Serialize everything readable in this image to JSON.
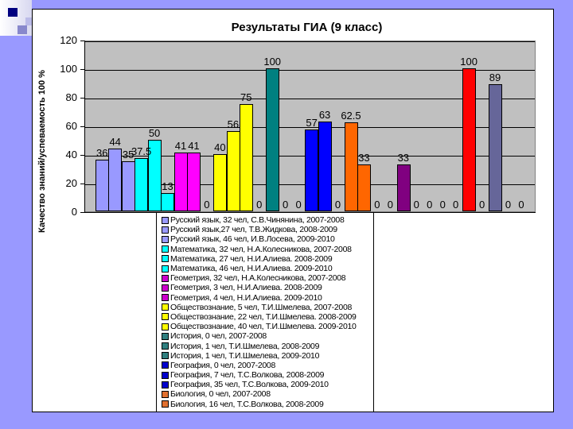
{
  "chart_data": {
    "type": "bar",
    "title": "Результаты ГИА (9 класс)",
    "xlabel": "",
    "ylabel": "Качество знаний/успеваемость 100 %",
    "ylim": [
      0,
      120
    ],
    "yticks": [
      0,
      20,
      40,
      60,
      80,
      100,
      120
    ],
    "grid": true,
    "legend_position": "bottom-center",
    "series": [
      {
        "name": "Русский язык, 32 чел, С.В.Чинянина, 2007-2008",
        "value": 36,
        "color": "#9999ff"
      },
      {
        "name": "Русский язык,27 чел, Т.В.Жидкова, 2008-2009",
        "value": 44,
        "color": "#9999ff"
      },
      {
        "name": "Русский язык, 46 чел, И.В.Лосева, 2009-2010",
        "value": 35,
        "color": "#9999ff"
      },
      {
        "name": "Математика, 32 чел, Н.А.Колесникова, 2007-2008",
        "value": 37.5,
        "color": "#00ffff"
      },
      {
        "name": "Математика, 27 чел, Н.И.Алиева. 2008-2009",
        "value": 50,
        "color": "#00ffff"
      },
      {
        "name": "Математика, 46 чел, Н.И.Алиева. 2009-2010",
        "value": 13,
        "color": "#00ffff"
      },
      {
        "name": "Геометрия, 32 чел, Н.А.Колесникова, 2007-2008",
        "value": 41,
        "color": "#ff00ff"
      },
      {
        "name": "Геометрия, 3 чел, Н.И.Алиева. 2008-2009",
        "value": 41,
        "color": "#ff00ff"
      },
      {
        "name": "Геометрия, 4 чел, Н.И.Алиева. 2009-2010",
        "value": 0,
        "color": "#ff00ff"
      },
      {
        "name": "Обществознание, 5 чел, Т.И.Шмелева, 2007-2008",
        "value": 40,
        "color": "#ffff00"
      },
      {
        "name": "Обществознание, 22 чел, Т.И.Шмелева. 2008-2009",
        "value": 56,
        "color": "#ffff00"
      },
      {
        "name": "Обществознание, 40 чел, Т.И.Шмелева. 2009-2010",
        "value": 75,
        "color": "#ffff00"
      },
      {
        "name": "История, 0 чел, 2007-2008",
        "value": 0,
        "color": "#008080"
      },
      {
        "name": "История, 1 чел, Т.И.Шмелева, 2008-2009",
        "value": 100,
        "color": "#008080"
      },
      {
        "name": "История, 1 чел, Т.И.Шмелева, 2009-2010",
        "value": 0,
        "color": "#008080"
      },
      {
        "name": "География, 0 чел, 2007-2008",
        "value": 0,
        "color": "#0000ff"
      },
      {
        "name": "География, 7 чел, Т.С.Волкова, 2008-2009",
        "value": 57,
        "color": "#0000ff"
      },
      {
        "name": "География, 35 чел, Т.С.Волкова, 2009-2010",
        "value": 63,
        "color": "#0000ff"
      },
      {
        "name": "Биология, 0 чел, 2007-2008",
        "value": 0,
        "color": "#ff6600"
      },
      {
        "name": "Биология, 16 чел, Т.С.Волкова, 2008-2009",
        "value": 62.5,
        "color": "#ff6600"
      },
      {
        "name": "",
        "value": 33,
        "color": "#ff6600"
      },
      {
        "name": "",
        "value": 0,
        "color": "#808080"
      },
      {
        "name": "",
        "value": 0,
        "color": "#808080"
      },
      {
        "name": "",
        "value": 33,
        "color": "#800080"
      },
      {
        "name": "",
        "value": 0,
        "color": "#800080"
      },
      {
        "name": "",
        "value": 0,
        "color": "#800080"
      },
      {
        "name": "",
        "value": 0,
        "color": "#ff0000"
      },
      {
        "name": "",
        "value": 0,
        "color": "#ff0000"
      },
      {
        "name": "",
        "value": 100,
        "color": "#ff0000"
      },
      {
        "name": "",
        "value": 0,
        "color": "#666699"
      },
      {
        "name": "",
        "value": 89,
        "color": "#666699"
      },
      {
        "name": "",
        "value": 0,
        "color": "#666699"
      },
      {
        "name": "",
        "value": 0,
        "color": "#666699"
      }
    ],
    "value_labels": [
      "36",
      "44",
      "35",
      "37.5",
      "50",
      "13",
      "41",
      "41",
      "0",
      "40",
      "56",
      "75",
      "0",
      "100",
      "0",
      "0",
      "57",
      "63",
      "0",
      "62.5",
      "33",
      "0",
      "0",
      "33",
      "0",
      "0",
      "0",
      "0",
      "100",
      "0",
      "89",
      "0",
      "0"
    ]
  },
  "legend": {
    "items": [
      {
        "label": "Русский язык, 32 чел, С.В.Чинянина, 2007-2008",
        "color": "#9999ff"
      },
      {
        "label": "Русский язык,27 чел, Т.В.Жидкова, 2008-2009",
        "color": "#9999ff"
      },
      {
        "label": "Русский язык, 46 чел, И.В.Лосева, 2009-2010",
        "color": "#9999ff"
      },
      {
        "label": "Математика, 32 чел, Н.А.Колесникова, 2007-2008",
        "color": "#00ffff"
      },
      {
        "label": "Математика, 27 чел, Н.И.Алиева. 2008-2009",
        "color": "#00ffff"
      },
      {
        "label": "Математика, 46 чел, Н.И.Алиева. 2009-2010",
        "color": "#00ffff"
      },
      {
        "label": "Геометрия, 32 чел, Н.А.Колесникова, 2007-2008",
        "color": "#cc00cc"
      },
      {
        "label": "Геометрия, 3 чел, Н.И.Алиева. 2008-2009",
        "color": "#cc00cc"
      },
      {
        "label": "Геометрия, 4 чел, Н.И.Алиева. 2009-2010",
        "color": "#cc00cc"
      },
      {
        "label": "Обществознание, 5 чел, Т.И.Шмелева, 2007-2008",
        "color": "#ffff00"
      },
      {
        "label": "Обществознание, 22 чел, Т.И.Шмелева. 2008-2009",
        "color": "#ffff00"
      },
      {
        "label": "Обществознание, 40 чел, Т.И.Шмелева. 2009-2010",
        "color": "#ffff00"
      },
      {
        "label": "История, 0 чел, 2007-2008",
        "color": "#2f7f7f"
      },
      {
        "label": "История, 1 чел, Т.И.Шмелева, 2008-2009",
        "color": "#2f7f7f"
      },
      {
        "label": "История, 1 чел, Т.И.Шмелева, 2009-2010",
        "color": "#2f7f7f"
      },
      {
        "label": "География, 0 чел, 2007-2008",
        "color": "#0000cc"
      },
      {
        "label": "География, 7 чел, Т.С.Волкова, 2008-2009",
        "color": "#0000cc"
      },
      {
        "label": "География, 35 чел, Т.С.Волкова, 2009-2010",
        "color": "#0000cc"
      },
      {
        "label": "Биология, 0 чел, 2007-2008",
        "color": "#e07030"
      },
      {
        "label": "Биология, 16 чел, Т.С.Волкова, 2008-2009",
        "color": "#e07030"
      }
    ]
  }
}
